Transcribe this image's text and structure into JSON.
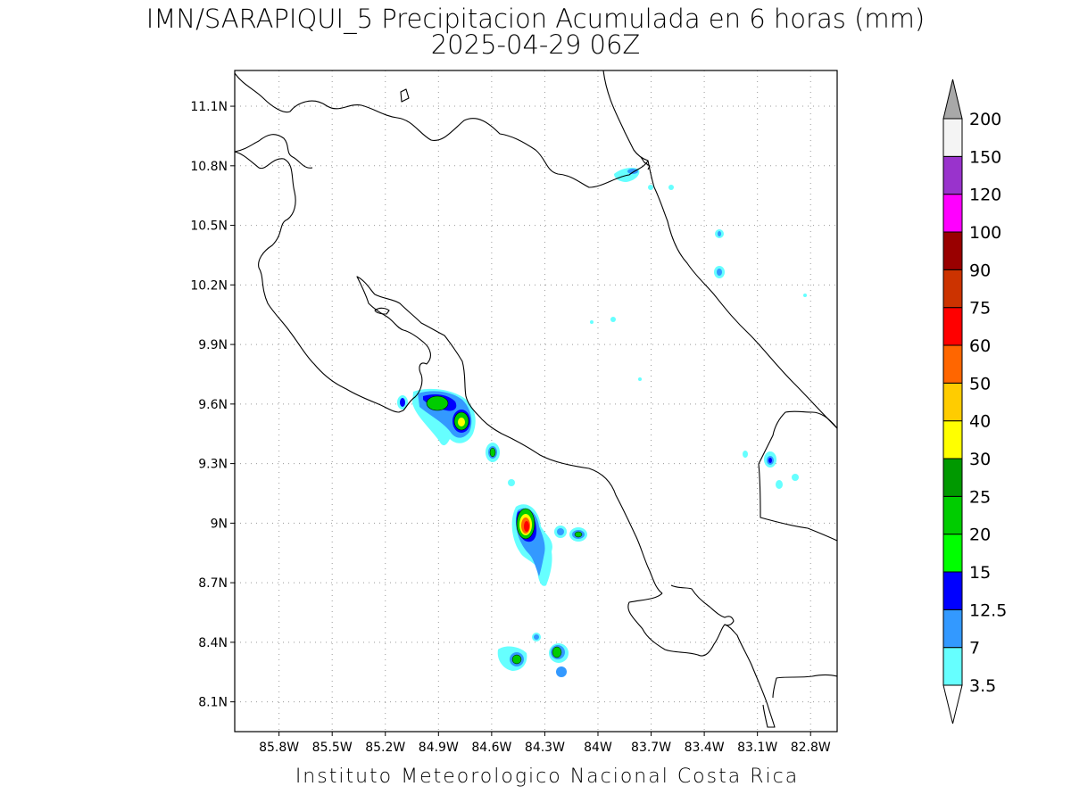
{
  "title": {
    "line1": "IMN/SARAPIQUI_5 Precipitacion Acumulada en 6 horas (mm)",
    "line2": "2025-04-29 06Z"
  },
  "footer": "Instituto Meteorologico Nacional Costa Rica",
  "map": {
    "lon_range": [
      -86.05,
      -82.65
    ],
    "lat_range": [
      7.95,
      11.28
    ],
    "x_ticks": [
      {
        "lon": -85.8,
        "label": "85.8W"
      },
      {
        "lon": -85.5,
        "label": "85.5W"
      },
      {
        "lon": -85.2,
        "label": "85.2W"
      },
      {
        "lon": -84.9,
        "label": "84.9W"
      },
      {
        "lon": -84.6,
        "label": "84.6W"
      },
      {
        "lon": -84.3,
        "label": "84.3W"
      },
      {
        "lon": -84.0,
        "label": "84W"
      },
      {
        "lon": -83.7,
        "label": "83.7W"
      },
      {
        "lon": -83.4,
        "label": "83.4W"
      },
      {
        "lon": -83.1,
        "label": "83.1W"
      },
      {
        "lon": -82.8,
        "label": "82.8W"
      }
    ],
    "y_ticks": [
      {
        "lat": 11.1,
        "label": "11.1N"
      },
      {
        "lat": 10.8,
        "label": "10.8N"
      },
      {
        "lat": 10.5,
        "label": "10.5N"
      },
      {
        "lat": 10.2,
        "label": "10.2N"
      },
      {
        "lat": 9.9,
        "label": "9.9N"
      },
      {
        "lat": 9.6,
        "label": "9.6N"
      },
      {
        "lat": 9.3,
        "label": "9.3N"
      },
      {
        "lat": 9.0,
        "label": "9N"
      },
      {
        "lat": 8.7,
        "label": "8.7N"
      },
      {
        "lat": 8.4,
        "label": "8.4N"
      },
      {
        "lat": 8.1,
        "label": "8.1N"
      }
    ],
    "grid": "dotted"
  },
  "legend": {
    "levels": [
      "3.5",
      "7",
      "12.5",
      "15",
      "20",
      "25",
      "30",
      "40",
      "50",
      "60",
      "75",
      "90",
      "100",
      "120",
      "150",
      "200"
    ],
    "colors": [
      "#66ffff",
      "#3399ff",
      "#0000ff",
      "#00ff00",
      "#00cc00",
      "#009900",
      "#ffff00",
      "#ffcc00",
      "#ff6600",
      "#ff0000",
      "#cc3300",
      "#990000",
      "#ff00ff",
      "#9933cc",
      "#f4f4f4"
    ],
    "over_color": "#a8a8a8",
    "under_color": "#ffffff"
  },
  "precip_cells": [
    {
      "lon": -84.85,
      "lat": 9.64,
      "peak_mm": 25
    },
    {
      "lon": -84.7,
      "lat": 9.56,
      "peak_mm": 40
    },
    {
      "lon": -85.04,
      "lat": 9.64,
      "peak_mm": 12.5
    },
    {
      "lon": -84.49,
      "lat": 9.39,
      "peak_mm": 20
    },
    {
      "lon": -84.31,
      "lat": 9.03,
      "peak_mm": 60
    },
    {
      "lon": -84.11,
      "lat": 9.0,
      "peak_mm": 12.5
    },
    {
      "lon": -84.0,
      "lat": 8.98,
      "peak_mm": 20
    },
    {
      "lon": -84.12,
      "lat": 8.4,
      "peak_mm": 20
    },
    {
      "lon": -84.33,
      "lat": 8.37,
      "peak_mm": 20
    },
    {
      "lon": -84.2,
      "lat": 8.46,
      "peak_mm": 7
    },
    {
      "lon": -84.1,
      "lat": 8.29,
      "peak_mm": 7
    },
    {
      "lon": -82.89,
      "lat": 9.35,
      "peak_mm": 12.5
    },
    {
      "lon": -83.17,
      "lat": 10.29,
      "peak_mm": 7
    },
    {
      "lon": -83.17,
      "lat": 10.48,
      "peak_mm": 7
    },
    {
      "lon": -83.75,
      "lat": 10.8,
      "peak_mm": 7
    }
  ]
}
